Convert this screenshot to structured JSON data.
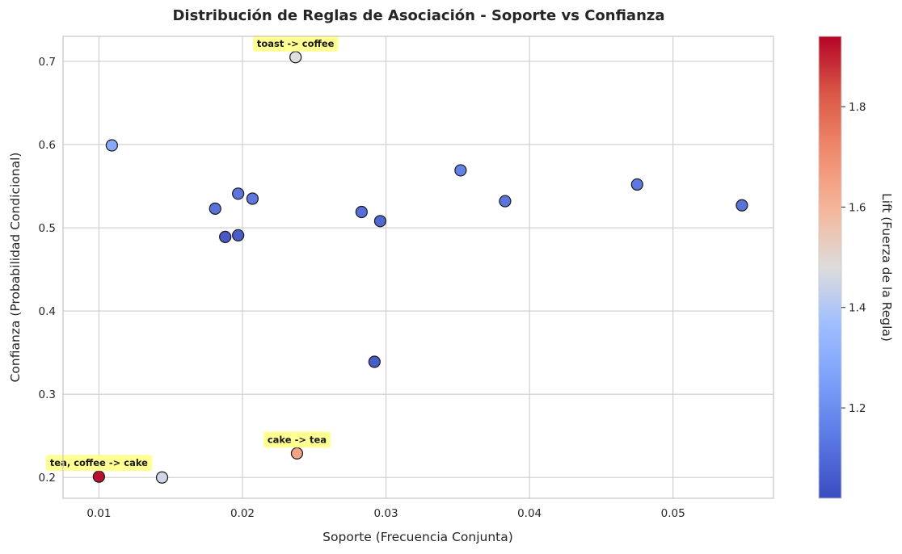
{
  "chart_data": {
    "type": "scatter",
    "title": "Distribución de Reglas de Asociación - Soporte vs Confianza",
    "xlabel": "Soporte (Frecuencia Conjunta)",
    "ylabel": "Confianza (Probabilidad Condicional)",
    "xlim": [
      0.0075,
      0.057
    ],
    "ylim": [
      0.175,
      0.73
    ],
    "xticks": [
      0.01,
      0.02,
      0.03,
      0.04,
      0.05
    ],
    "xtick_labels": [
      "0.01",
      "0.02",
      "0.03",
      "0.04",
      "0.05"
    ],
    "yticks": [
      0.2,
      0.3,
      0.4,
      0.5,
      0.6,
      0.7
    ],
    "ytick_labels": [
      "0.2",
      "0.3",
      "0.4",
      "0.5",
      "0.6",
      "0.7"
    ],
    "grid": true,
    "colormap": "coolwarm",
    "colorbar": {
      "label": "Lift (Fuerza de la Regla)",
      "min": 1.02,
      "max": 1.94,
      "ticks": [
        1.2,
        1.4,
        1.6,
        1.8
      ],
      "tick_labels": [
        "1.2",
        "1.4",
        "1.6",
        "1.8"
      ]
    },
    "points": [
      {
        "x": 0.0237,
        "y": 0.705,
        "lift": 1.48,
        "label": "toast -> coffee"
      },
      {
        "x": 0.0109,
        "y": 0.599,
        "lift": 1.27
      },
      {
        "x": 0.0352,
        "y": 0.569,
        "lift": 1.14
      },
      {
        "x": 0.0475,
        "y": 0.552,
        "lift": 1.12
      },
      {
        "x": 0.0197,
        "y": 0.541,
        "lift": 1.11
      },
      {
        "x": 0.0207,
        "y": 0.535,
        "lift": 1.12
      },
      {
        "x": 0.0383,
        "y": 0.532,
        "lift": 1.11
      },
      {
        "x": 0.0548,
        "y": 0.527,
        "lift": 1.1
      },
      {
        "x": 0.0181,
        "y": 0.523,
        "lift": 1.1
      },
      {
        "x": 0.0283,
        "y": 0.519,
        "lift": 1.09
      },
      {
        "x": 0.0296,
        "y": 0.508,
        "lift": 1.07
      },
      {
        "x": 0.0197,
        "y": 0.491,
        "lift": 1.04
      },
      {
        "x": 0.0188,
        "y": 0.489,
        "lift": 1.03
      },
      {
        "x": 0.0292,
        "y": 0.339,
        "lift": 1.04
      },
      {
        "x": 0.0238,
        "y": 0.229,
        "lift": 1.66,
        "label": "cake -> tea"
      },
      {
        "x": 0.0144,
        "y": 0.2,
        "lift": 1.45
      },
      {
        "x": 0.01,
        "y": 0.201,
        "lift": 1.94,
        "label": "tea, coffee -> cake"
      }
    ],
    "annotation_color": "#ffff80"
  }
}
